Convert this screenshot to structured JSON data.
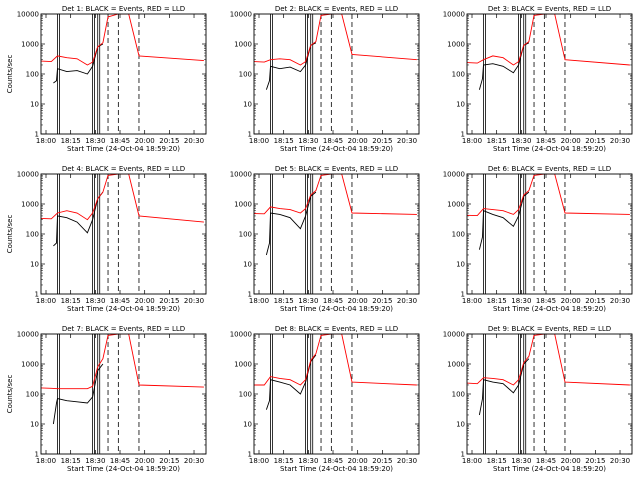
{
  "figure": {
    "panel_titles": [
      "Det 1: BLACK = Events, RED = LLD",
      "Det 2: BLACK = Events, RED = LLD",
      "Det 3: BLACK = Events, RED = LLD",
      "Det 4: BLACK = Events, RED = LLD",
      "Det 5: BLACK = Events, RED = LLD",
      "Det 6: BLACK = Events, RED = LLD",
      "Det 7: BLACK = Events, RED = LLD",
      "Det 8: BLACK = Events, RED = LLD",
      "Det 9: BLACK = Events, RED = LLD"
    ]
  },
  "chart_data": [
    {
      "type": "line",
      "title": "Det 1: BLACK = Events, RED = LLD",
      "xlabel": "Start Time (24-Oct-04 18:59:20)",
      "ylabel": "Counts/sec",
      "y_scale": "log",
      "ylim": [
        1,
        10000
      ],
      "xlim": [
        "18:00",
        "20:40"
      ],
      "x_tick_labels": [
        "18:00",
        "18:15",
        "18:30",
        "18:45",
        "20:00",
        "20:15",
        "20:30"
      ],
      "y_tick_labels": [
        "1",
        "10",
        "100",
        "1000",
        "10000"
      ],
      "series": [
        {
          "name": "Events",
          "color": "#000000",
          "x": [
            "18:12",
            "18:15",
            "18:16",
            "18:25",
            "18:35",
            "18:45",
            "18:50",
            "18:55",
            "19:00"
          ],
          "y": [
            50,
            60,
            150,
            120,
            130,
            100,
            180,
            800,
            1000
          ]
        },
        {
          "name": "LLD",
          "color": "#ff0000",
          "x": [
            "18:00",
            "18:10",
            "18:16",
            "18:25",
            "18:35",
            "18:45",
            "18:50",
            "18:55",
            "19:00",
            "19:05",
            "19:15",
            "19:25",
            "19:35",
            "20:38"
          ],
          "y": [
            270,
            260,
            400,
            350,
            320,
            200,
            250,
            800,
            1100,
            8000,
            10000,
            10000,
            400,
            280
          ]
        }
      ]
    },
    {
      "type": "line",
      "title": "Det 2: BLACK = Events, RED = LLD",
      "xlabel": "Start Time (24-Oct-04 18:59:20)",
      "ylabel": "",
      "y_scale": "log",
      "ylim": [
        1,
        10000
      ],
      "xlim": [
        "18:00",
        "20:40"
      ],
      "x_tick_labels": [
        "18:00",
        "18:15",
        "18:30",
        "18:45",
        "20:00",
        "20:15",
        "20:30"
      ],
      "y_tick_labels": [
        "1",
        "10",
        "100",
        "1000",
        "10000"
      ],
      "series": [
        {
          "name": "Events",
          "color": "#000000",
          "x": [
            "18:12",
            "18:15",
            "18:16",
            "18:25",
            "18:35",
            "18:45",
            "18:50",
            "18:55",
            "19:00"
          ],
          "y": [
            30,
            60,
            180,
            150,
            170,
            120,
            200,
            900,
            1100
          ]
        },
        {
          "name": "LLD",
          "color": "#ff0000",
          "x": [
            "18:00",
            "18:10",
            "18:16",
            "18:25",
            "18:35",
            "18:45",
            "18:50",
            "18:55",
            "19:00",
            "19:05",
            "19:15",
            "19:25",
            "19:35",
            "20:38"
          ],
          "y": [
            260,
            250,
            300,
            320,
            300,
            200,
            260,
            900,
            1200,
            9000,
            10000,
            10000,
            450,
            300
          ]
        }
      ]
    },
    {
      "type": "line",
      "title": "Det 3: BLACK = Events, RED = LLD",
      "xlabel": "Start Time (24-Oct-04 18:59:20)",
      "ylabel": "",
      "y_scale": "log",
      "ylim": [
        1,
        10000
      ],
      "xlim": [
        "18:00",
        "20:40"
      ],
      "x_tick_labels": [
        "18:00",
        "18:15",
        "18:30",
        "18:45",
        "20:00",
        "20:15",
        "20:30"
      ],
      "y_tick_labels": [
        "1",
        "10",
        "100",
        "1000",
        "10000"
      ],
      "series": [
        {
          "name": "Events",
          "color": "#000000",
          "x": [
            "18:12",
            "18:15",
            "18:16",
            "18:25",
            "18:35",
            "18:45",
            "18:50",
            "18:55",
            "19:00"
          ],
          "y": [
            30,
            70,
            200,
            220,
            180,
            110,
            200,
            900,
            1100
          ]
        },
        {
          "name": "LLD",
          "color": "#ff0000",
          "x": [
            "18:00",
            "18:10",
            "18:16",
            "18:25",
            "18:35",
            "18:45",
            "18:50",
            "18:55",
            "19:00",
            "19:05",
            "19:15",
            "19:25",
            "19:35",
            "20:38"
          ],
          "y": [
            240,
            230,
            300,
            400,
            350,
            200,
            260,
            900,
            1200,
            9000,
            10000,
            10000,
            300,
            200
          ]
        }
      ]
    },
    {
      "type": "line",
      "title": "Det 4: BLACK = Events, RED = LLD",
      "xlabel": "Start Time (24-Oct-04 18:59:20)",
      "ylabel": "Counts/sec",
      "y_scale": "log",
      "ylim": [
        1,
        10000
      ],
      "xlim": [
        "18:00",
        "20:40"
      ],
      "x_tick_labels": [
        "18:00",
        "18:15",
        "18:30",
        "18:45",
        "20:00",
        "20:15",
        "20:30"
      ],
      "y_tick_labels": [
        "1",
        "10",
        "100",
        "1000",
        "10000"
      ],
      "series": [
        {
          "name": "Events",
          "color": "#000000",
          "x": [
            "18:12",
            "18:15",
            "18:16",
            "18:25",
            "18:35",
            "18:45",
            "18:50",
            "18:55",
            "19:00"
          ],
          "y": [
            40,
            50,
            400,
            350,
            250,
            110,
            300,
            1500,
            2500
          ]
        },
        {
          "name": "LLD",
          "color": "#ff0000",
          "x": [
            "18:00",
            "18:10",
            "18:16",
            "18:25",
            "18:35",
            "18:45",
            "18:50",
            "18:55",
            "19:00",
            "19:05",
            "19:15",
            "19:25",
            "19:35",
            "20:38"
          ],
          "y": [
            330,
            320,
            500,
            600,
            500,
            300,
            500,
            1500,
            2500,
            9000,
            10000,
            10000,
            400,
            250
          ]
        }
      ]
    },
    {
      "type": "line",
      "title": "Det 5: BLACK = Events, RED = LLD",
      "xlabel": "Start Time (24-Oct-04 18:59:20)",
      "ylabel": "",
      "y_scale": "log",
      "ylim": [
        1,
        10000
      ],
      "xlim": [
        "18:00",
        "20:40"
      ],
      "x_tick_labels": [
        "18:00",
        "18:15",
        "18:30",
        "18:45",
        "20:00",
        "20:15",
        "20:30"
      ],
      "y_tick_labels": [
        "1",
        "10",
        "100",
        "1000",
        "10000"
      ],
      "series": [
        {
          "name": "Events",
          "color": "#000000",
          "x": [
            "18:12",
            "18:15",
            "18:16",
            "18:25",
            "18:35",
            "18:45",
            "18:50",
            "18:55",
            "19:00"
          ],
          "y": [
            20,
            50,
            500,
            450,
            350,
            150,
            400,
            1800,
            2500
          ]
        },
        {
          "name": "LLD",
          "color": "#ff0000",
          "x": [
            "18:00",
            "18:10",
            "18:16",
            "18:25",
            "18:35",
            "18:45",
            "18:50",
            "18:55",
            "19:00",
            "19:05",
            "19:15",
            "19:25",
            "19:35",
            "20:38"
          ],
          "y": [
            480,
            470,
            800,
            700,
            650,
            500,
            700,
            2000,
            2800,
            9000,
            10000,
            10000,
            500,
            450
          ]
        }
      ]
    },
    {
      "type": "line",
      "title": "Det 6: BLACK = Events, RED = LLD",
      "xlabel": "Start Time (24-Oct-04 18:59:20)",
      "ylabel": "",
      "y_scale": "log",
      "ylim": [
        1,
        10000
      ],
      "xlim": [
        "18:00",
        "20:40"
      ],
      "x_tick_labels": [
        "18:00",
        "18:15",
        "18:30",
        "18:45",
        "20:00",
        "20:15",
        "20:30"
      ],
      "y_tick_labels": [
        "1",
        "10",
        "100",
        "1000",
        "10000"
      ],
      "series": [
        {
          "name": "Events",
          "color": "#000000",
          "x": [
            "18:12",
            "18:15",
            "18:16",
            "18:25",
            "18:35",
            "18:45",
            "18:50",
            "18:55",
            "19:00"
          ],
          "y": [
            30,
            80,
            600,
            450,
            350,
            180,
            400,
            1800,
            2500
          ]
        },
        {
          "name": "LLD",
          "color": "#ff0000",
          "x": [
            "18:00",
            "18:10",
            "18:16",
            "18:25",
            "18:35",
            "18:45",
            "18:50",
            "18:55",
            "19:00",
            "19:05",
            "19:15",
            "19:25",
            "19:35",
            "20:38"
          ],
          "y": [
            420,
            410,
            700,
            650,
            600,
            450,
            650,
            2000,
            2800,
            9000,
            10000,
            10000,
            500,
            450
          ]
        }
      ]
    },
    {
      "type": "line",
      "title": "Det 7: BLACK = Events, RED = LLD",
      "xlabel": "Start Time (24-Oct-04 18:59:20)",
      "ylabel": "Counts/sec",
      "y_scale": "log",
      "ylim": [
        1,
        10000
      ],
      "xlim": [
        "18:00",
        "20:40"
      ],
      "x_tick_labels": [
        "18:00",
        "18:15",
        "18:30",
        "18:45",
        "20:00",
        "20:15",
        "20:30"
      ],
      "y_tick_labels": [
        "1",
        "10",
        "100",
        "1000",
        "10000"
      ],
      "series": [
        {
          "name": "Events",
          "color": "#000000",
          "x": [
            "18:12",
            "18:15",
            "18:16",
            "18:25",
            "18:35",
            "18:45",
            "18:50",
            "18:55",
            "19:00"
          ],
          "y": [
            10,
            50,
            70,
            60,
            55,
            50,
            80,
            600,
            1000
          ]
        },
        {
          "name": "LLD",
          "color": "#ff0000",
          "x": [
            "18:00",
            "18:10",
            "18:16",
            "18:25",
            "18:35",
            "18:45",
            "18:50",
            "18:55",
            "19:00",
            "19:05",
            "19:15",
            "19:25",
            "19:35",
            "20:38"
          ],
          "y": [
            160,
            155,
            150,
            150,
            150,
            150,
            180,
            800,
            1500,
            9000,
            10000,
            10000,
            200,
            170
          ]
        }
      ]
    },
    {
      "type": "line",
      "title": "Det 8: BLACK = Events, RED = LLD",
      "xlabel": "Start Time (24-Oct-04 18:59:20)",
      "ylabel": "",
      "y_scale": "log",
      "ylim": [
        1,
        10000
      ],
      "xlim": [
        "18:00",
        "20:40"
      ],
      "x_tick_labels": [
        "18:00",
        "18:15",
        "18:30",
        "18:45",
        "20:00",
        "20:15",
        "20:30"
      ],
      "y_tick_labels": [
        "1",
        "10",
        "100",
        "1000",
        "10000"
      ],
      "series": [
        {
          "name": "Events",
          "color": "#000000",
          "x": [
            "18:12",
            "18:15",
            "18:16",
            "18:25",
            "18:35",
            "18:45",
            "18:50",
            "18:55",
            "19:00"
          ],
          "y": [
            30,
            60,
            300,
            250,
            200,
            100,
            250,
            1200,
            2000
          ]
        },
        {
          "name": "LLD",
          "color": "#ff0000",
          "x": [
            "18:00",
            "18:10",
            "18:16",
            "18:25",
            "18:35",
            "18:45",
            "18:50",
            "18:55",
            "19:00",
            "19:05",
            "19:15",
            "19:25",
            "19:35",
            "20:38"
          ],
          "y": [
            200,
            200,
            380,
            330,
            300,
            200,
            300,
            1300,
            2200,
            9000,
            10000,
            10000,
            250,
            200
          ]
        }
      ]
    },
    {
      "type": "line",
      "title": "Det 9: BLACK = Events, RED = LLD",
      "xlabel": "Start Time (24-Oct-04 18:59:20)",
      "ylabel": "",
      "y_scale": "log",
      "ylim": [
        1,
        10000
      ],
      "xlim": [
        "18:00",
        "20:40"
      ],
      "x_tick_labels": [
        "18:00",
        "18:15",
        "18:30",
        "18:45",
        "20:00",
        "20:15",
        "20:30"
      ],
      "y_tick_labels": [
        "1",
        "10",
        "100",
        "1000",
        "10000"
      ],
      "series": [
        {
          "name": "Events",
          "color": "#000000",
          "x": [
            "18:12",
            "18:15",
            "18:16",
            "18:25",
            "18:35",
            "18:45",
            "18:50",
            "18:55",
            "19:00"
          ],
          "y": [
            20,
            70,
            300,
            250,
            220,
            110,
            200,
            1000,
            1500
          ]
        },
        {
          "name": "LLD",
          "color": "#ff0000",
          "x": [
            "18:00",
            "18:10",
            "18:16",
            "18:25",
            "18:35",
            "18:45",
            "18:50",
            "18:55",
            "19:00",
            "19:05",
            "19:15",
            "19:25",
            "19:35",
            "20:38"
          ],
          "y": [
            230,
            220,
            350,
            330,
            300,
            200,
            300,
            1100,
            1800,
            9000,
            10000,
            10000,
            250,
            200
          ]
        }
      ]
    }
  ]
}
